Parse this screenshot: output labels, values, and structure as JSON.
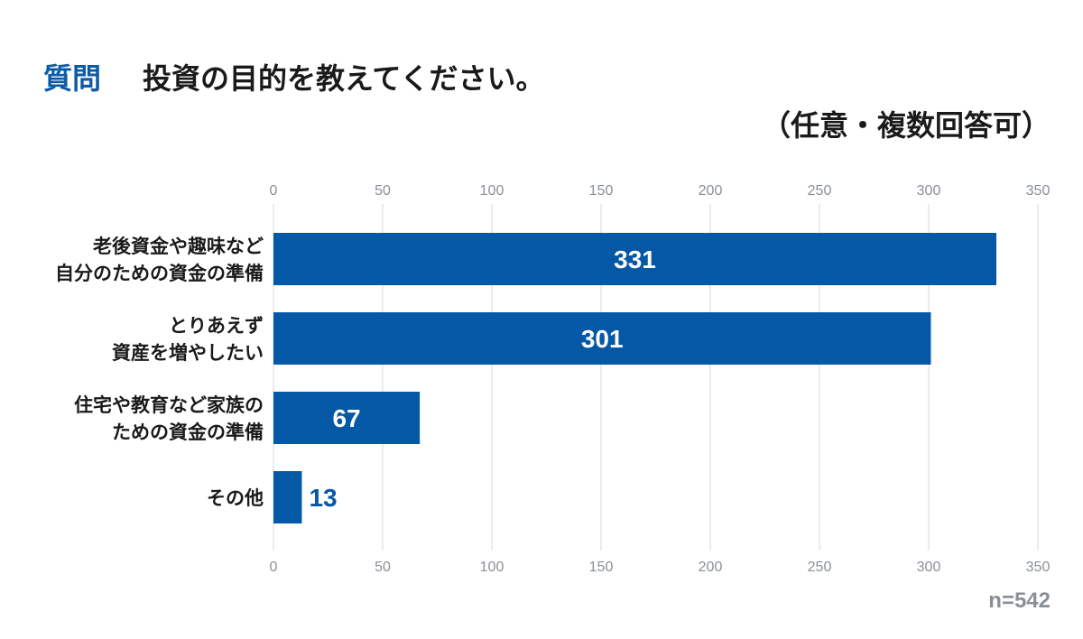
{
  "header": {
    "question_label": "質問",
    "question_text": "投資の目的を教えてください。",
    "note": "（任意・複数回答可）"
  },
  "footer": {
    "n": "n=542"
  },
  "chart_data": {
    "type": "bar",
    "orientation": "horizontal",
    "categories": [
      [
        "老後資金や趣味など",
        "自分のための資金の準備"
      ],
      [
        "とりあえず",
        "資産を増やしたい"
      ],
      [
        "住宅や教育など家族の",
        "ための資金の準備"
      ],
      [
        "その他"
      ]
    ],
    "values": [
      331,
      301,
      67,
      13
    ],
    "xlim": [
      0,
      350
    ],
    "ticks": [
      0,
      50,
      100,
      150,
      200,
      250,
      300,
      350
    ],
    "grid": true,
    "bar_color": "#0558a5",
    "label_inside_color": "#ffffff",
    "label_outside_color": "#0558a5"
  }
}
